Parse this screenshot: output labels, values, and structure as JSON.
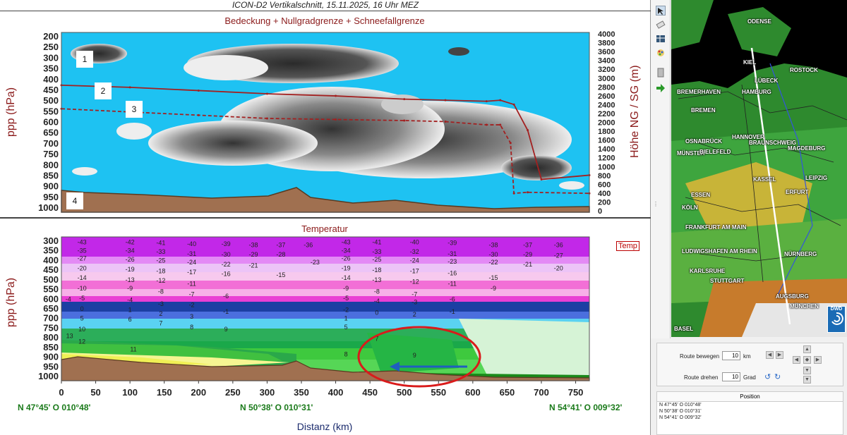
{
  "main_title": "ICON-D2 Vertikalschnitt, 15.11.2025, 16 Uhr MEZ",
  "top_panel": {
    "title": "Bedeckung + Nullgradgrenze + Schneefallgrenze",
    "ylabel_left": "ppp (hPa)",
    "ylabel_right": "Höhe NG / SG (m)",
    "markers": [
      "1",
      "2",
      "3",
      "4"
    ]
  },
  "bottom_panel": {
    "title": "Temperatur",
    "ylabel_left": "ppp (hPa)",
    "legend_label": "Temp",
    "xlabel": "Distanz (km)"
  },
  "coords": {
    "start": "N 47°45' O 010°48'",
    "middle": "N 50°38' O 010°31'",
    "end": "N 54°41' O 009°32'"
  },
  "chart_data": [
    {
      "type": "area",
      "title": "Bedeckung + Nullgradgrenze + Schneefallgrenze",
      "ylabel": "ppp (hPa)",
      "y2label": "Höhe NG / SG (m)",
      "ylim": [
        1000,
        200
      ],
      "y2lim": [
        0,
        4000
      ],
      "y_ticks": [
        "200",
        "250",
        "300",
        "350",
        "400",
        "450",
        "500",
        "550",
        "600",
        "650",
        "700",
        "750",
        "800",
        "850",
        "900",
        "950",
        "1000"
      ],
      "y2_ticks": [
        "4000",
        "3800",
        "3600",
        "3400",
        "3200",
        "3000",
        "2800",
        "2600",
        "2400",
        "2200",
        "2000",
        "1800",
        "1600",
        "1400",
        "1200",
        "1000",
        "800",
        "600",
        "400",
        "200",
        "0"
      ],
      "xlim": [
        0,
        770
      ],
      "series": [
        {
          "name": "Nullgradgrenze",
          "x": [
            0,
            100,
            200,
            300,
            400,
            500,
            560,
            620,
            640,
            660,
            680,
            700,
            770
          ],
          "y": [
            430,
            440,
            455,
            470,
            480,
            495,
            500,
            505,
            500,
            520,
            640,
            870,
            850
          ]
        },
        {
          "name": "Schneefallgrenze",
          "x": [
            0,
            100,
            200,
            300,
            400,
            500,
            560,
            620,
            640,
            655,
            660,
            680,
            770
          ],
          "y": [
            540,
            555,
            570,
            585,
            590,
            595,
            600,
            615,
            615,
            700,
            935,
            930,
            935
          ]
        }
      ]
    },
    {
      "type": "heatmap",
      "title": "Temperatur",
      "ylabel": "ppp (hPa)",
      "xlabel": "Distanz (km)",
      "ylim": [
        1000,
        300
      ],
      "xlim": [
        0,
        770
      ],
      "x_ticks": [
        "0",
        "50",
        "100",
        "150",
        "200",
        "250",
        "300",
        "350",
        "400",
        "450",
        "500",
        "550",
        "600",
        "650",
        "700",
        "750"
      ],
      "y_ticks": [
        "300",
        "350",
        "400",
        "450",
        "500",
        "550",
        "600",
        "650",
        "700",
        "750",
        "800",
        "850",
        "900",
        "950",
        "1000"
      ],
      "labels": [
        {
          "x": 15,
          "p": 305,
          "t": "-43"
        },
        {
          "x": 85,
          "p": 305,
          "t": "-42"
        },
        {
          "x": 130,
          "p": 310,
          "t": "-41"
        },
        {
          "x": 175,
          "p": 315,
          "t": "-40"
        },
        {
          "x": 225,
          "p": 315,
          "t": "-39"
        },
        {
          "x": 265,
          "p": 320,
          "t": "-38"
        },
        {
          "x": 305,
          "p": 320,
          "t": "-37"
        },
        {
          "x": 345,
          "p": 320,
          "t": "-36"
        },
        {
          "x": 400,
          "p": 305,
          "t": "-43"
        },
        {
          "x": 445,
          "p": 305,
          "t": "-41"
        },
        {
          "x": 500,
          "p": 305,
          "t": "-40"
        },
        {
          "x": 555,
          "p": 310,
          "t": "-39"
        },
        {
          "x": 615,
          "p": 320,
          "t": "-38"
        },
        {
          "x": 665,
          "p": 320,
          "t": "-37"
        },
        {
          "x": 710,
          "p": 320,
          "t": "-36"
        },
        {
          "x": 15,
          "p": 350,
          "t": "-35"
        },
        {
          "x": 85,
          "p": 350,
          "t": "-34"
        },
        {
          "x": 130,
          "p": 355,
          "t": "-33"
        },
        {
          "x": 175,
          "p": 365,
          "t": "-31"
        },
        {
          "x": 225,
          "p": 370,
          "t": "-30"
        },
        {
          "x": 265,
          "p": 370,
          "t": "-29"
        },
        {
          "x": 305,
          "p": 370,
          "t": "-28"
        },
        {
          "x": 400,
          "p": 350,
          "t": "-34"
        },
        {
          "x": 445,
          "p": 355,
          "t": "-33"
        },
        {
          "x": 500,
          "p": 355,
          "t": "-32"
        },
        {
          "x": 555,
          "p": 365,
          "t": "-31"
        },
        {
          "x": 615,
          "p": 370,
          "t": "-30"
        },
        {
          "x": 665,
          "p": 370,
          "t": "-29"
        },
        {
          "x": 710,
          "p": 375,
          "t": "-27"
        },
        {
          "x": 15,
          "p": 390,
          "t": "-27"
        },
        {
          "x": 85,
          "p": 395,
          "t": "-26"
        },
        {
          "x": 130,
          "p": 400,
          "t": "-25"
        },
        {
          "x": 175,
          "p": 410,
          "t": "-24"
        },
        {
          "x": 225,
          "p": 420,
          "t": "-22"
        },
        {
          "x": 265,
          "p": 425,
          "t": "-21"
        },
        {
          "x": 355,
          "p": 410,
          "t": "-23"
        },
        {
          "x": 400,
          "p": 390,
          "t": "-26"
        },
        {
          "x": 445,
          "p": 395,
          "t": "-25"
        },
        {
          "x": 500,
          "p": 400,
          "t": "-24"
        },
        {
          "x": 555,
          "p": 405,
          "t": "-23"
        },
        {
          "x": 615,
          "p": 410,
          "t": "-22"
        },
        {
          "x": 665,
          "p": 420,
          "t": "-21"
        },
        {
          "x": 710,
          "p": 440,
          "t": "-20"
        },
        {
          "x": 15,
          "p": 440,
          "t": "-20"
        },
        {
          "x": 85,
          "p": 445,
          "t": "-19"
        },
        {
          "x": 130,
          "p": 455,
          "t": "-18"
        },
        {
          "x": 175,
          "p": 460,
          "t": "-17"
        },
        {
          "x": 225,
          "p": 470,
          "t": "-16"
        },
        {
          "x": 305,
          "p": 475,
          "t": "-15"
        },
        {
          "x": 400,
          "p": 440,
          "t": "-19"
        },
        {
          "x": 445,
          "p": 450,
          "t": "-18"
        },
        {
          "x": 500,
          "p": 455,
          "t": "-17"
        },
        {
          "x": 555,
          "p": 465,
          "t": "-16"
        },
        {
          "x": 615,
          "p": 490,
          "t": "-15"
        },
        {
          "x": 15,
          "p": 490,
          "t": "-14"
        },
        {
          "x": 85,
          "p": 500,
          "t": "-13"
        },
        {
          "x": 130,
          "p": 505,
          "t": "-12"
        },
        {
          "x": 175,
          "p": 520,
          "t": "-11"
        },
        {
          "x": 400,
          "p": 490,
          "t": "-14"
        },
        {
          "x": 445,
          "p": 500,
          "t": "-13"
        },
        {
          "x": 500,
          "p": 510,
          "t": "-12"
        },
        {
          "x": 555,
          "p": 520,
          "t": "-11"
        },
        {
          "x": 15,
          "p": 545,
          "t": "-10"
        },
        {
          "x": 85,
          "p": 545,
          "t": "-9"
        },
        {
          "x": 130,
          "p": 560,
          "t": "-8"
        },
        {
          "x": 175,
          "p": 575,
          "t": "-7"
        },
        {
          "x": 225,
          "p": 585,
          "t": "-6"
        },
        {
          "x": 400,
          "p": 545,
          "t": "-9"
        },
        {
          "x": 445,
          "p": 560,
          "t": "-8"
        },
        {
          "x": 500,
          "p": 575,
          "t": "-7"
        },
        {
          "x": 555,
          "p": 600,
          "t": "-6"
        },
        {
          "x": 615,
          "p": 545,
          "t": "-9"
        },
        {
          "x": -5,
          "p": 600,
          "t": "-4"
        },
        {
          "x": 15,
          "p": 595,
          "t": "-5"
        },
        {
          "x": 85,
          "p": 605,
          "t": "-4"
        },
        {
          "x": 130,
          "p": 625,
          "t": "-3"
        },
        {
          "x": 175,
          "p": 630,
          "t": "-2"
        },
        {
          "x": 400,
          "p": 595,
          "t": "-5"
        },
        {
          "x": 445,
          "p": 610,
          "t": "-4"
        },
        {
          "x": 500,
          "p": 615,
          "t": "-3"
        },
        {
          "x": 15,
          "p": 650,
          "t": "0"
        },
        {
          "x": 85,
          "p": 655,
          "t": "1"
        },
        {
          "x": 130,
          "p": 675,
          "t": "2"
        },
        {
          "x": 175,
          "p": 690,
          "t": "3"
        },
        {
          "x": 225,
          "p": 665,
          "t": "-1"
        },
        {
          "x": 400,
          "p": 655,
          "t": "-2"
        },
        {
          "x": 445,
          "p": 670,
          "t": "0"
        },
        {
          "x": 500,
          "p": 680,
          "t": "2"
        },
        {
          "x": 555,
          "p": 665,
          "t": "-1"
        },
        {
          "x": 400,
          "p": 700,
          "t": "1"
        },
        {
          "x": 15,
          "p": 700,
          "t": "5"
        },
        {
          "x": 85,
          "p": 705,
          "t": "6"
        },
        {
          "x": 130,
          "p": 725,
          "t": "7"
        },
        {
          "x": 175,
          "p": 745,
          "t": "8"
        },
        {
          "x": 225,
          "p": 755,
          "t": "9"
        },
        {
          "x": 400,
          "p": 745,
          "t": "5"
        },
        {
          "x": 445,
          "p": 805,
          "t": "7"
        },
        {
          "x": 15,
          "p": 755,
          "t": "10"
        },
        {
          "x": -3,
          "p": 790,
          "t": "13"
        },
        {
          "x": 15,
          "p": 820,
          "t": "12"
        },
        {
          "x": 90,
          "p": 860,
          "t": "11"
        },
        {
          "x": 400,
          "p": 885,
          "t": "8"
        },
        {
          "x": 500,
          "p": 890,
          "t": "9"
        }
      ],
      "annotations": [
        "red-ellipse-highlight",
        "blue-arrow-left"
      ]
    }
  ],
  "map": {
    "cities": [
      "ODENSE",
      "KIEL",
      "ROSTOCK",
      "LÜBECK",
      "BREMERHAVEN",
      "HAMBURG",
      "BREMEN",
      "OSNABRÜCK",
      "HANNOVER",
      "BRAUNSCHWEIG",
      "MAGDEBURG",
      "MÜNSTER",
      "BIELEFELD",
      "KASSEL",
      "LEIPZIG",
      "ERFURT",
      "ESSEN",
      "KÖLN",
      "FRANKFURT AM MAIN",
      "LUDWIGSHAFEN AM RHEIN",
      "NÜRNBERG",
      "KARLSRUHE",
      "STUTTGART",
      "AUGSBURG",
      "MÜNCHEN",
      "BASEL"
    ],
    "logo": "DWD"
  },
  "controls": {
    "move_label": "Route bewegen",
    "move_value": "10",
    "move_unit": "km",
    "rotate_label": "Route drehen",
    "rotate_value": "10",
    "rotate_unit": "Grad"
  },
  "position_panel": {
    "header": "Position",
    "rows": [
      "N 47°45' O 010°48'",
      "N 50°38' O 010°31'",
      "N 54°41' O 009°32'"
    ]
  }
}
